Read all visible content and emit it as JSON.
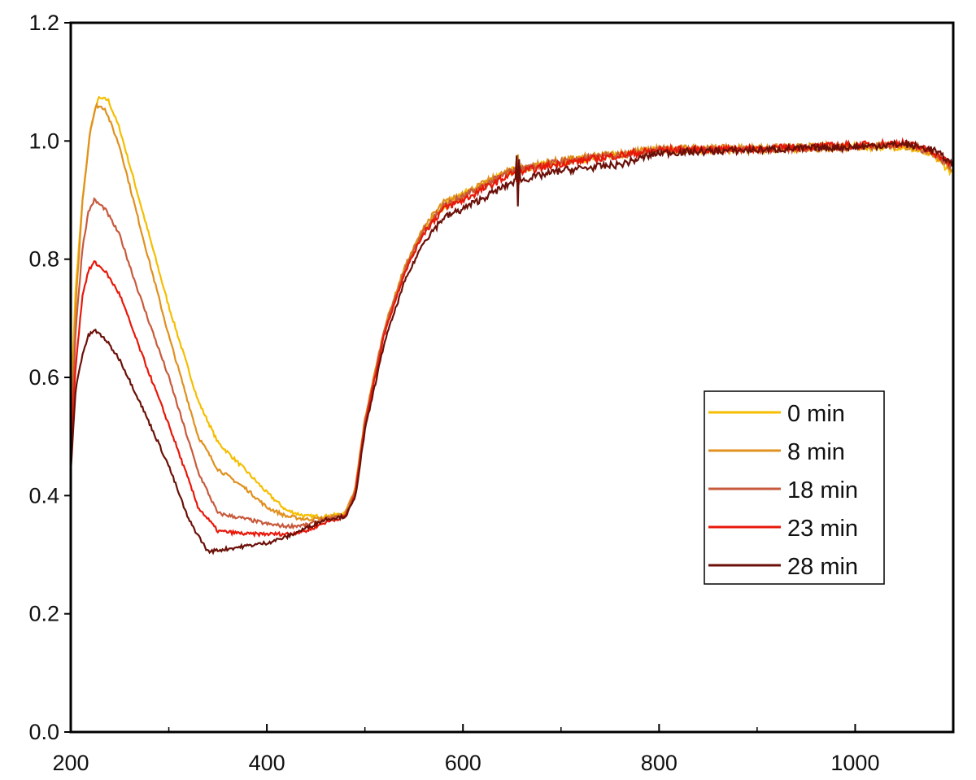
{
  "chart_data": {
    "type": "line",
    "title": "",
    "xlabel": "",
    "ylabel": "",
    "xlim": [
      200,
      1100
    ],
    "ylim": [
      0.0,
      1.2
    ],
    "x_ticks": [
      "200",
      "400",
      "600",
      "800",
      "1000"
    ],
    "x_tick_values": [
      200,
      400,
      600,
      800,
      1000
    ],
    "y_ticks": [
      "0.0",
      "0.2",
      "0.4",
      "0.6",
      "0.8",
      "1.0",
      "1.2"
    ],
    "y_tick_values": [
      0.0,
      0.2,
      0.4,
      0.6,
      0.8,
      1.0,
      1.2
    ],
    "grid": false,
    "legend_placement": "center-right",
    "series": [
      {
        "name": "0 min",
        "color": "#F5BE00",
        "points": [
          [
            200,
            0.55
          ],
          [
            205,
            0.75
          ],
          [
            212,
            0.9
          ],
          [
            220,
            1.02
          ],
          [
            228,
            1.072
          ],
          [
            238,
            1.07
          ],
          [
            250,
            1.02
          ],
          [
            270,
            0.9
          ],
          [
            300,
            0.72
          ],
          [
            330,
            0.56
          ],
          [
            350,
            0.49
          ],
          [
            380,
            0.44
          ],
          [
            400,
            0.405
          ],
          [
            420,
            0.375
          ],
          [
            440,
            0.365
          ],
          [
            460,
            0.365
          ],
          [
            480,
            0.37
          ],
          [
            490,
            0.41
          ],
          [
            500,
            0.53
          ],
          [
            520,
            0.68
          ],
          [
            540,
            0.78
          ],
          [
            560,
            0.85
          ],
          [
            580,
            0.89
          ],
          [
            600,
            0.91
          ],
          [
            650,
            0.95
          ],
          [
            700,
            0.965
          ],
          [
            800,
            0.985
          ],
          [
            900,
            0.985
          ],
          [
            1000,
            0.99
          ],
          [
            1050,
            0.99
          ],
          [
            1080,
            0.975
          ],
          [
            1100,
            0.945
          ]
        ]
      },
      {
        "name": "8 min",
        "color": "#E0901E",
        "points": [
          [
            200,
            0.5
          ],
          [
            205,
            0.72
          ],
          [
            212,
            0.9
          ],
          [
            220,
            1.02
          ],
          [
            226,
            1.06
          ],
          [
            235,
            1.055
          ],
          [
            250,
            0.99
          ],
          [
            270,
            0.86
          ],
          [
            300,
            0.67
          ],
          [
            330,
            0.5
          ],
          [
            350,
            0.445
          ],
          [
            380,
            0.41
          ],
          [
            400,
            0.38
          ],
          [
            420,
            0.365
          ],
          [
            440,
            0.36
          ],
          [
            460,
            0.362
          ],
          [
            480,
            0.37
          ],
          [
            490,
            0.41
          ],
          [
            500,
            0.53
          ],
          [
            520,
            0.685
          ],
          [
            540,
            0.785
          ],
          [
            560,
            0.855
          ],
          [
            580,
            0.895
          ],
          [
            600,
            0.91
          ],
          [
            650,
            0.952
          ],
          [
            700,
            0.967
          ],
          [
            800,
            0.987
          ],
          [
            900,
            0.988
          ],
          [
            1000,
            0.992
          ],
          [
            1050,
            0.992
          ],
          [
            1080,
            0.978
          ],
          [
            1100,
            0.95
          ]
        ]
      },
      {
        "name": "18 min",
        "color": "#C85A3C",
        "points": [
          [
            200,
            0.48
          ],
          [
            205,
            0.68
          ],
          [
            212,
            0.82
          ],
          [
            218,
            0.88
          ],
          [
            224,
            0.9
          ],
          [
            235,
            0.885
          ],
          [
            250,
            0.84
          ],
          [
            270,
            0.74
          ],
          [
            300,
            0.6
          ],
          [
            330,
            0.44
          ],
          [
            350,
            0.37
          ],
          [
            380,
            0.36
          ],
          [
            400,
            0.352
          ],
          [
            420,
            0.348
          ],
          [
            440,
            0.35
          ],
          [
            460,
            0.36
          ],
          [
            480,
            0.365
          ],
          [
            490,
            0.405
          ],
          [
            500,
            0.525
          ],
          [
            520,
            0.68
          ],
          [
            540,
            0.78
          ],
          [
            560,
            0.85
          ],
          [
            580,
            0.89
          ],
          [
            600,
            0.905
          ],
          [
            650,
            0.95
          ],
          [
            700,
            0.965
          ],
          [
            800,
            0.985
          ],
          [
            900,
            0.985
          ],
          [
            1000,
            0.99
          ],
          [
            1050,
            0.995
          ],
          [
            1080,
            0.98
          ],
          [
            1100,
            0.955
          ]
        ]
      },
      {
        "name": "23 min",
        "color": "#E8180A",
        "points": [
          [
            200,
            0.47
          ],
          [
            205,
            0.62
          ],
          [
            212,
            0.74
          ],
          [
            218,
            0.78
          ],
          [
            224,
            0.795
          ],
          [
            235,
            0.78
          ],
          [
            250,
            0.74
          ],
          [
            270,
            0.65
          ],
          [
            300,
            0.52
          ],
          [
            330,
            0.38
          ],
          [
            350,
            0.34
          ],
          [
            380,
            0.335
          ],
          [
            400,
            0.335
          ],
          [
            420,
            0.335
          ],
          [
            440,
            0.34
          ],
          [
            460,
            0.355
          ],
          [
            480,
            0.365
          ],
          [
            490,
            0.4
          ],
          [
            500,
            0.52
          ],
          [
            520,
            0.675
          ],
          [
            540,
            0.775
          ],
          [
            560,
            0.845
          ],
          [
            580,
            0.885
          ],
          [
            600,
            0.9
          ],
          [
            650,
            0.945
          ],
          [
            700,
            0.962
          ],
          [
            800,
            0.985
          ],
          [
            900,
            0.987
          ],
          [
            1000,
            0.993
          ],
          [
            1050,
            0.997
          ],
          [
            1080,
            0.982
          ],
          [
            1100,
            0.958
          ]
        ]
      },
      {
        "name": "28 min",
        "color": "#6B1008",
        "points": [
          [
            200,
            0.44
          ],
          [
            205,
            0.58
          ],
          [
            212,
            0.64
          ],
          [
            218,
            0.67
          ],
          [
            224,
            0.68
          ],
          [
            235,
            0.665
          ],
          [
            250,
            0.63
          ],
          [
            270,
            0.56
          ],
          [
            300,
            0.45
          ],
          [
            320,
            0.36
          ],
          [
            340,
            0.305
          ],
          [
            360,
            0.31
          ],
          [
            380,
            0.315
          ],
          [
            400,
            0.32
          ],
          [
            420,
            0.33
          ],
          [
            440,
            0.345
          ],
          [
            460,
            0.36
          ],
          [
            480,
            0.365
          ],
          [
            490,
            0.395
          ],
          [
            500,
            0.51
          ],
          [
            520,
            0.66
          ],
          [
            540,
            0.76
          ],
          [
            560,
            0.83
          ],
          [
            580,
            0.87
          ],
          [
            600,
            0.885
          ],
          [
            650,
            0.93
          ],
          [
            700,
            0.95
          ],
          [
            760,
            0.96
          ],
          [
            800,
            0.98
          ],
          [
            900,
            0.985
          ],
          [
            1000,
            0.99
          ],
          [
            1050,
            0.995
          ],
          [
            1080,
            0.985
          ],
          [
            1100,
            0.96
          ]
        ]
      }
    ]
  }
}
